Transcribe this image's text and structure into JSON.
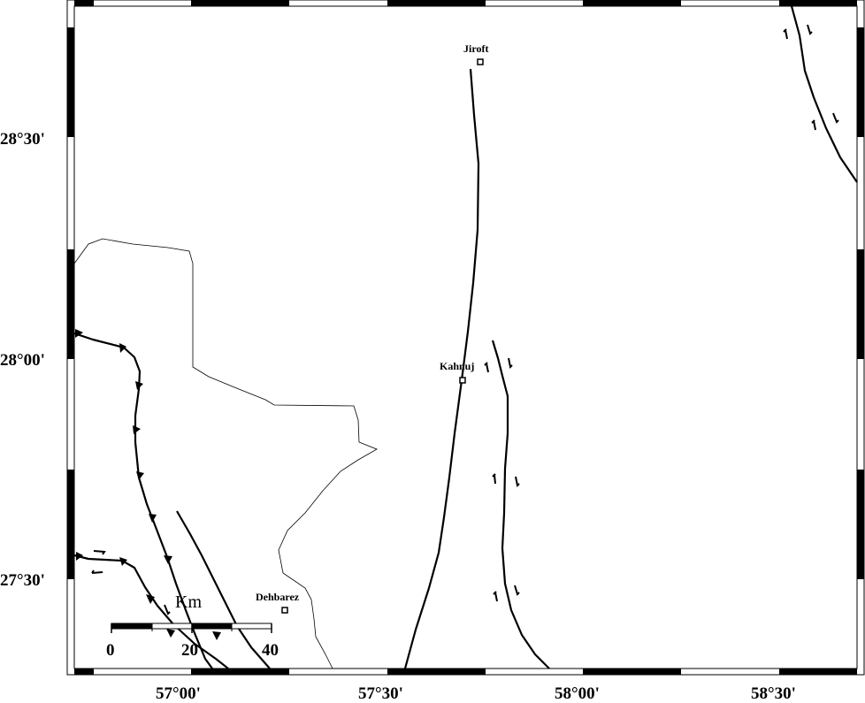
{
  "map": {
    "lat_labels": [
      "28°30'",
      "28°00'",
      "27°30'"
    ],
    "lon_labels": [
      "57°00'",
      "57°30'",
      "58°00'",
      "58°30'"
    ],
    "cities": [
      {
        "name": "Jiroft"
      },
      {
        "name": "Kahnuj"
      },
      {
        "name": "Dehbarez"
      }
    ],
    "scale_bar": {
      "unit": "Km",
      "ticks": [
        "0",
        "20",
        "40"
      ]
    }
  }
}
